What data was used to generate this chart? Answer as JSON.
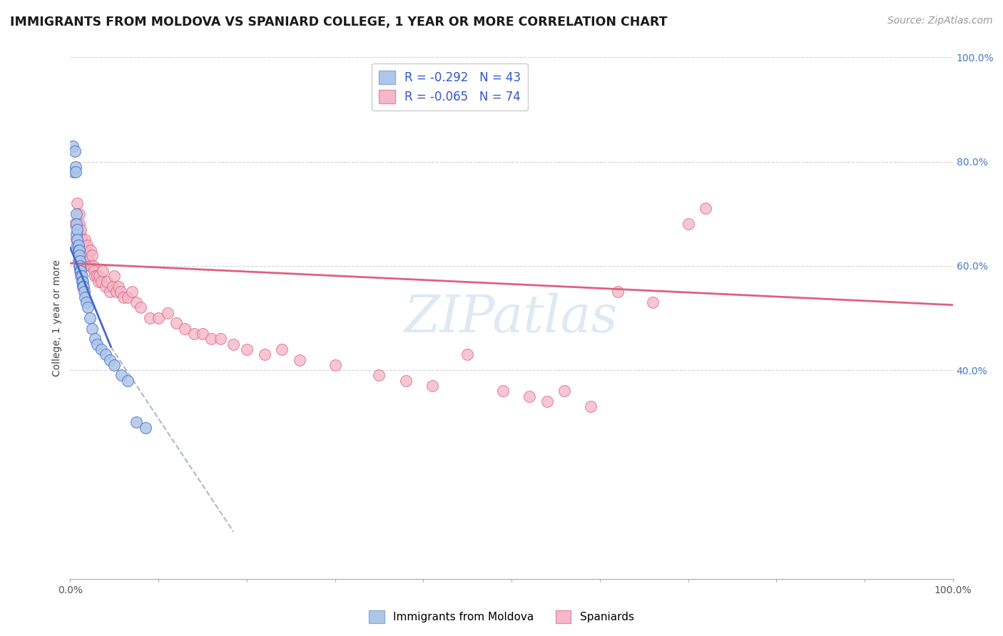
{
  "title": "IMMIGRANTS FROM MOLDOVA VS SPANIARD COLLEGE, 1 YEAR OR MORE CORRELATION CHART",
  "source": "Source: ZipAtlas.com",
  "ylabel": "College, 1 year or more",
  "xlim": [
    0.0,
    1.0
  ],
  "ylim": [
    0.0,
    1.0
  ],
  "background_color": "#ffffff",
  "grid_color": "#c8c8c8",
  "watermark": "ZIPatlas",
  "legend": {
    "R1": "-0.292",
    "N1": "43",
    "R2": "-0.065",
    "N2": "74",
    "color1": "#aec6e8",
    "color2": "#f4b8c8"
  },
  "moldova_scatter_color": "#aec6e8",
  "spaniard_scatter_color": "#f4b8c8",
  "moldova_line_color": "#4169cc",
  "spaniard_line_color": "#e06080",
  "dashed_line_color": "#b0b8c8",
  "moldova_points_x": [
    0.003,
    0.004,
    0.005,
    0.006,
    0.006,
    0.007,
    0.007,
    0.007,
    0.008,
    0.008,
    0.008,
    0.009,
    0.009,
    0.009,
    0.01,
    0.01,
    0.01,
    0.011,
    0.011,
    0.011,
    0.012,
    0.012,
    0.013,
    0.013,
    0.014,
    0.014,
    0.015,
    0.016,
    0.017,
    0.018,
    0.02,
    0.022,
    0.025,
    0.028,
    0.03,
    0.035,
    0.04,
    0.045,
    0.05,
    0.058,
    0.065,
    0.075,
    0.085
  ],
  "moldova_points_y": [
    0.83,
    0.78,
    0.82,
    0.79,
    0.78,
    0.7,
    0.68,
    0.66,
    0.67,
    0.64,
    0.65,
    0.64,
    0.63,
    0.61,
    0.63,
    0.62,
    0.6,
    0.61,
    0.6,
    0.59,
    0.59,
    0.58,
    0.58,
    0.57,
    0.57,
    0.56,
    0.56,
    0.55,
    0.54,
    0.53,
    0.52,
    0.5,
    0.48,
    0.46,
    0.45,
    0.44,
    0.43,
    0.42,
    0.41,
    0.39,
    0.38,
    0.3,
    0.29
  ],
  "spaniard_points_x": [
    0.005,
    0.007,
    0.008,
    0.009,
    0.01,
    0.01,
    0.011,
    0.012,
    0.012,
    0.013,
    0.013,
    0.014,
    0.014,
    0.015,
    0.016,
    0.017,
    0.017,
    0.018,
    0.019,
    0.02,
    0.021,
    0.022,
    0.023,
    0.024,
    0.025,
    0.026,
    0.027,
    0.028,
    0.03,
    0.032,
    0.033,
    0.035,
    0.037,
    0.04,
    0.042,
    0.045,
    0.048,
    0.05,
    0.052,
    0.055,
    0.057,
    0.06,
    0.065,
    0.07,
    0.075,
    0.08,
    0.09,
    0.1,
    0.11,
    0.12,
    0.13,
    0.14,
    0.15,
    0.16,
    0.17,
    0.185,
    0.2,
    0.22,
    0.24,
    0.26,
    0.3,
    0.35,
    0.38,
    0.41,
    0.45,
    0.49,
    0.52,
    0.54,
    0.56,
    0.59,
    0.62,
    0.66,
    0.7,
    0.72
  ],
  "spaniard_points_y": [
    0.68,
    0.65,
    0.72,
    0.64,
    0.7,
    0.68,
    0.66,
    0.65,
    0.67,
    0.65,
    0.64,
    0.63,
    0.64,
    0.62,
    0.62,
    0.65,
    0.63,
    0.62,
    0.64,
    0.62,
    0.61,
    0.6,
    0.63,
    0.6,
    0.62,
    0.6,
    0.59,
    0.58,
    0.58,
    0.57,
    0.58,
    0.57,
    0.59,
    0.56,
    0.57,
    0.55,
    0.56,
    0.58,
    0.55,
    0.56,
    0.55,
    0.54,
    0.54,
    0.55,
    0.53,
    0.52,
    0.5,
    0.5,
    0.51,
    0.49,
    0.48,
    0.47,
    0.47,
    0.46,
    0.46,
    0.45,
    0.44,
    0.43,
    0.44,
    0.42,
    0.41,
    0.39,
    0.38,
    0.37,
    0.43,
    0.36,
    0.35,
    0.34,
    0.36,
    0.33,
    0.55,
    0.53,
    0.68,
    0.71
  ],
  "title_fontsize": 12.5,
  "axis_label_fontsize": 10,
  "tick_fontsize": 10,
  "legend_fontsize": 12,
  "watermark_fontsize": 52,
  "source_fontsize": 10
}
